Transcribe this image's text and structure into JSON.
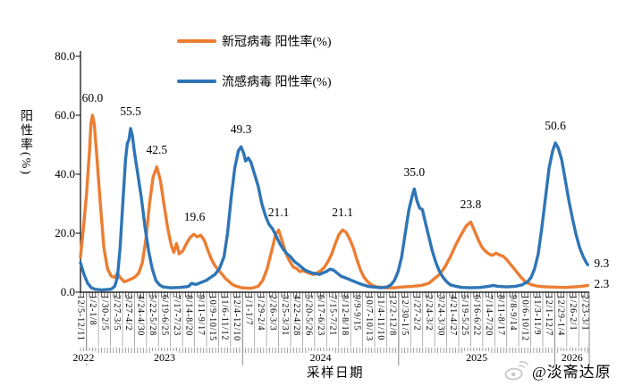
{
  "legend": {
    "items": [
      {
        "label": "新冠病毒 阳性率(%)",
        "color": "#ED7D31"
      },
      {
        "label": "流感病毒 阳性率(%)",
        "color": "#2E75B6"
      }
    ]
  },
  "y_axis": {
    "title": "阳性率(%)",
    "tick_labels": [
      "80.0",
      "60.0",
      "40.0",
      "20.0",
      "0.0"
    ],
    "min": 0,
    "max": 80
  },
  "x_axis": {
    "title": "采样日期",
    "label_interval_weeks": 4,
    "minor_tick_weeks": 1,
    "week_labels": [
      "12/5-12/11",
      "1/2-1/8",
      "1/30-2/5",
      "2/27-3/5",
      "3/27-4/2",
      "4/24-4/30",
      "5/22-5/28",
      "6/19-6/25",
      "7/17-7/23",
      "8/14-8/20",
      "9/11-9/17",
      "10/9-10/15",
      "11/6-11/12",
      "12/4-12/10",
      "1/1-1/7",
      "1/29-2/4",
      "2/26-3/3",
      "3/25-3/31",
      "4/22-4/28",
      "5/20-5/26",
      "6/17-6/23",
      "7/15-7/21",
      "8/12-8/18",
      "9/9-9/15",
      "10/7-10/13",
      "11/4-11/10",
      "12/2-12/8",
      "12/30-1/5",
      "1/27-2/2",
      "2/24-3/2",
      "3/24-3/30",
      "4/21-4/27",
      "5/19-5/25",
      "6/16-6/22",
      "7/14-7/20",
      "8/11-8/17",
      "9/8-9/14",
      "10/6-10/12",
      "11/3-11/9",
      "12/1-12/7",
      "12/29-1/4",
      "1/26-2/1",
      "2/23-3/1"
    ],
    "years": [
      {
        "label": "2022",
        "start_week": 0,
        "end_week": 2
      },
      {
        "label": "2023",
        "start_week": 2,
        "end_week": 54
      },
      {
        "label": "2024",
        "start_week": 54,
        "end_week": 106
      },
      {
        "label": "2025",
        "start_week": 106,
        "end_week": 158
      },
      {
        "label": "2026",
        "start_week": 158,
        "end_week": 169.5
      }
    ]
  },
  "chart_data": {
    "type": "line",
    "x_unit": "week_index_from_2022-12-05",
    "ylim": [
      0,
      80
    ],
    "grid": false,
    "legend_position": "top-center",
    "series": [
      {
        "name": "新冠病毒 阳性率(%)",
        "color": "#ED7D31",
        "points": [
          [
            0,
            12
          ],
          [
            1,
            22
          ],
          [
            2,
            33
          ],
          [
            3,
            48
          ],
          [
            3.5,
            57
          ],
          [
            4,
            60
          ],
          [
            4.6,
            57
          ],
          [
            5.3,
            48
          ],
          [
            6.6,
            30
          ],
          [
            7.8,
            15
          ],
          [
            9,
            8
          ],
          [
            10.2,
            5.5
          ],
          [
            11.4,
            5
          ],
          [
            12.3,
            6.5
          ],
          [
            13.2,
            5
          ],
          [
            14.6,
            3.5
          ],
          [
            15.8,
            4
          ],
          [
            17,
            4.5
          ],
          [
            18.2,
            5.2
          ],
          [
            19.4,
            6.5
          ],
          [
            20.6,
            10
          ],
          [
            21.8,
            18
          ],
          [
            23,
            30
          ],
          [
            24.2,
            39
          ],
          [
            25.4,
            42.5
          ],
          [
            26.6,
            38
          ],
          [
            27.8,
            30
          ],
          [
            29,
            22
          ],
          [
            30.2,
            16
          ],
          [
            31.1,
            13.5
          ],
          [
            32,
            16.5
          ],
          [
            32.9,
            13
          ],
          [
            34.1,
            14
          ],
          [
            35.3,
            16.5
          ],
          [
            36.5,
            18.5
          ],
          [
            37.7,
            19.6
          ],
          [
            38.9,
            18.8
          ],
          [
            40.1,
            19.3
          ],
          [
            41.3,
            17.5
          ],
          [
            42.5,
            14
          ],
          [
            43.7,
            11
          ],
          [
            44.8,
            9
          ],
          [
            46,
            7.5
          ],
          [
            47.2,
            6
          ],
          [
            48.4,
            4.5
          ],
          [
            49.6,
            3.5
          ],
          [
            50.8,
            2.5
          ],
          [
            52,
            2
          ],
          [
            53.8,
            1.5
          ],
          [
            56.8,
            1.3
          ],
          [
            59.2,
            2
          ],
          [
            60.7,
            4
          ],
          [
            62.2,
            8
          ],
          [
            63.7,
            14
          ],
          [
            65,
            19.5
          ],
          [
            66,
            21.1
          ],
          [
            67.3,
            17
          ],
          [
            68.5,
            13
          ],
          [
            69.7,
            10.5
          ],
          [
            70.9,
            8.5
          ],
          [
            72.1,
            8
          ],
          [
            73,
            7
          ],
          [
            74.1,
            7.3
          ],
          [
            75.3,
            6.8
          ],
          [
            76.5,
            6.3
          ],
          [
            77.7,
            6
          ],
          [
            78.9,
            6.6
          ],
          [
            80.1,
            7.3
          ],
          [
            81.3,
            8.5
          ],
          [
            82.5,
            10.5
          ],
          [
            83.7,
            13
          ],
          [
            84.9,
            16.5
          ],
          [
            86.1,
            19.5
          ],
          [
            87.3,
            21.1
          ],
          [
            88.5,
            20.3
          ],
          [
            89.7,
            18
          ],
          [
            90.9,
            15
          ],
          [
            92.1,
            11
          ],
          [
            93.3,
            7.5
          ],
          [
            94.5,
            5
          ],
          [
            95.7,
            3.5
          ],
          [
            96.9,
            2.5
          ],
          [
            98.7,
            1.8
          ],
          [
            101.6,
            1.5
          ],
          [
            104.6,
            1.5
          ],
          [
            107.6,
            1.8
          ],
          [
            110.6,
            2
          ],
          [
            113.6,
            2.3
          ],
          [
            116,
            3
          ],
          [
            117.8,
            4.5
          ],
          [
            119.6,
            6
          ],
          [
            121.4,
            8.5
          ],
          [
            123.2,
            12
          ],
          [
            125,
            16
          ],
          [
            126.8,
            19.5
          ],
          [
            128.5,
            22.5
          ],
          [
            130,
            23.8
          ],
          [
            131.2,
            21
          ],
          [
            132.4,
            18
          ],
          [
            133.6,
            15.5
          ],
          [
            134.8,
            14
          ],
          [
            136,
            13
          ],
          [
            137.2,
            12.5
          ],
          [
            138.4,
            13.2
          ],
          [
            139.6,
            12.6
          ],
          [
            140.8,
            12.2
          ],
          [
            142,
            11
          ],
          [
            143.2,
            9.5
          ],
          [
            144.4,
            8
          ],
          [
            145.6,
            6.5
          ],
          [
            146.8,
            5
          ],
          [
            148,
            3.8
          ],
          [
            149.2,
            3
          ],
          [
            150.4,
            2.5
          ],
          [
            152.5,
            2
          ],
          [
            155.5,
            1.8
          ],
          [
            158.5,
            1.7
          ],
          [
            161.4,
            1.6
          ],
          [
            164.4,
            1.8
          ],
          [
            167,
            2
          ],
          [
            169,
            2.3
          ]
        ]
      },
      {
        "name": "流感病毒 阳性率(%)",
        "color": "#2E75B6",
        "points": [
          [
            0,
            10
          ],
          [
            1.2,
            6
          ],
          [
            2.4,
            3
          ],
          [
            3.6,
            1.5
          ],
          [
            4.8,
            1
          ],
          [
            7,
            0.8
          ],
          [
            10.2,
            1
          ],
          [
            11.4,
            2
          ],
          [
            12.3,
            5
          ],
          [
            13.2,
            15
          ],
          [
            14.1,
            30
          ],
          [
            15,
            45
          ],
          [
            15.6,
            50.5
          ],
          [
            16.1,
            51.5
          ],
          [
            16.7,
            55.5
          ],
          [
            17.3,
            53
          ],
          [
            17.9,
            48
          ],
          [
            19.1,
            40
          ],
          [
            20.3,
            32
          ],
          [
            21.5,
            22
          ],
          [
            22.7,
            14
          ],
          [
            23.9,
            8
          ],
          [
            25.1,
            4
          ],
          [
            26.3,
            2.5
          ],
          [
            27.5,
            1.8
          ],
          [
            30,
            1.5
          ],
          [
            33,
            1.6
          ],
          [
            35.9,
            1.9
          ],
          [
            37.1,
            3
          ],
          [
            38.3,
            2.6
          ],
          [
            39.5,
            3
          ],
          [
            40.7,
            3.5
          ],
          [
            41.9,
            4
          ],
          [
            43.3,
            5
          ],
          [
            44.8,
            6
          ],
          [
            46.3,
            8
          ],
          [
            47.8,
            12
          ],
          [
            49,
            20
          ],
          [
            50.2,
            32
          ],
          [
            51.4,
            42
          ],
          [
            52.6,
            48
          ],
          [
            53.5,
            49.3
          ],
          [
            54.4,
            47
          ],
          [
            55,
            44.5
          ],
          [
            55.9,
            45.5
          ],
          [
            56.8,
            44
          ],
          [
            58,
            40
          ],
          [
            59.2,
            36
          ],
          [
            60.4,
            30
          ],
          [
            61.6,
            26
          ],
          [
            62.8,
            23
          ],
          [
            64,
            21.5
          ],
          [
            65.2,
            19
          ],
          [
            66.4,
            16.5
          ],
          [
            67.6,
            14.5
          ],
          [
            68.8,
            13
          ],
          [
            70,
            12
          ],
          [
            71.2,
            10.5
          ],
          [
            72.4,
            9.5
          ],
          [
            73.6,
            8.5
          ],
          [
            74.8,
            7.5
          ],
          [
            76,
            7
          ],
          [
            77.2,
            6.5
          ],
          [
            78.4,
            6.3
          ],
          [
            79.6,
            6
          ],
          [
            80.7,
            6.5
          ],
          [
            81.9,
            7
          ],
          [
            83.1,
            7.8
          ],
          [
            84.3,
            7.5
          ],
          [
            85.5,
            6.5
          ],
          [
            86.7,
            5.5
          ],
          [
            87.9,
            5
          ],
          [
            89.1,
            4.5
          ],
          [
            90.3,
            4
          ],
          [
            91.5,
            3.5
          ],
          [
            92.7,
            3
          ],
          [
            94.2,
            2.5
          ],
          [
            95.7,
            2
          ],
          [
            97.2,
            1.8
          ],
          [
            100.1,
            1.5
          ],
          [
            102.2,
            1.8
          ],
          [
            103.4,
            2.5
          ],
          [
            104.6,
            4
          ],
          [
            105.8,
            7
          ],
          [
            107,
            12
          ],
          [
            108.2,
            20
          ],
          [
            109.4,
            28
          ],
          [
            110.6,
            33
          ],
          [
            111.2,
            35
          ],
          [
            112.1,
            31
          ],
          [
            113,
            28.5
          ],
          [
            113.9,
            28
          ],
          [
            114.8,
            24
          ],
          [
            116,
            19
          ],
          [
            117.2,
            14
          ],
          [
            118.4,
            10
          ],
          [
            119.6,
            7
          ],
          [
            120.8,
            5
          ],
          [
            122,
            3.5
          ],
          [
            123.2,
            2.5
          ],
          [
            125,
            2
          ],
          [
            127.1,
            1.6
          ],
          [
            130.1,
            1.5
          ],
          [
            133.1,
            1.6
          ],
          [
            136,
            2
          ],
          [
            137.5,
            2.3
          ],
          [
            139,
            2
          ],
          [
            142,
            1.8
          ],
          [
            145,
            2
          ],
          [
            147.1,
            2.5
          ],
          [
            148.9,
            3.5
          ],
          [
            150.1,
            5
          ],
          [
            151.3,
            8
          ],
          [
            152.5,
            13
          ],
          [
            153.7,
            22
          ],
          [
            154.9,
            32
          ],
          [
            156.1,
            42
          ],
          [
            157.3,
            48
          ],
          [
            158.2,
            50.6
          ],
          [
            159.1,
            49
          ],
          [
            160.3,
            45
          ],
          [
            161.5,
            38
          ],
          [
            162.7,
            31
          ],
          [
            163.9,
            25
          ],
          [
            165.1,
            19.5
          ],
          [
            166.3,
            15
          ],
          [
            167.5,
            12
          ],
          [
            168.5,
            10
          ],
          [
            169,
            9.3
          ]
        ]
      }
    ],
    "annotations": [
      {
        "text": "60.0",
        "series": "新冠病毒",
        "week": 4,
        "value": 60
      },
      {
        "text": "55.5",
        "series": "流感病毒",
        "week": 16.7,
        "value": 55.5
      },
      {
        "text": "42.5",
        "series": "新冠病毒",
        "week": 25.4,
        "value": 42.5
      },
      {
        "text": "19.6",
        "series": "新冠病毒",
        "week": 38,
        "value": 19.6
      },
      {
        "text": "49.3",
        "series": "流感病毒",
        "week": 53.5,
        "value": 49.3
      },
      {
        "text": "21.1",
        "series": "新冠病毒",
        "week": 66,
        "value": 21.1
      },
      {
        "text": "21.1",
        "series": "新冠病毒",
        "week": 87.3,
        "value": 21.1
      },
      {
        "text": "35.0",
        "series": "流感病毒",
        "week": 111.2,
        "value": 35.0
      },
      {
        "text": "23.8",
        "series": "新冠病毒",
        "week": 130,
        "value": 23.8
      },
      {
        "text": "50.6",
        "series": "流感病毒",
        "week": 158.2,
        "value": 50.6
      },
      {
        "text": "9.3",
        "series": "流感病毒",
        "week": 169,
        "value": 9.3,
        "end": true
      },
      {
        "text": "2.3",
        "series": "新冠病毒",
        "week": 169,
        "value": 2.3,
        "end": true
      }
    ]
  },
  "watermark": {
    "handle": "@淡斋达原",
    "icon": "weibo-icon",
    "color": "#c9c9c9"
  }
}
